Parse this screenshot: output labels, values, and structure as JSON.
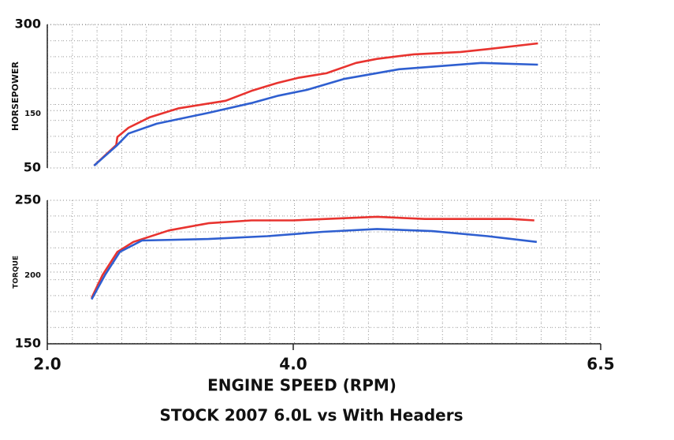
{
  "chart_data": [
    {
      "type": "line",
      "ylabel": "HORSEPOWER",
      "xlim": [
        2.0,
        6.5
      ],
      "ylim": [
        50,
        300
      ],
      "yticks": [
        50,
        150,
        300
      ],
      "grid": true,
      "series": [
        {
          "color": "#e8332f",
          "x": [
            2.38,
            2.56,
            2.57,
            2.66,
            2.83,
            3.07,
            3.45,
            3.67,
            3.87,
            4.04,
            4.27,
            4.51,
            4.68,
            4.98,
            5.36,
            5.58,
            5.99
          ],
          "values": [
            54,
            90,
            104,
            120,
            138,
            154,
            167,
            185,
            198,
            207,
            215,
            233,
            240,
            248,
            252,
            257,
            267
          ]
        },
        {
          "color": "#2f5fd0",
          "x": [
            2.38,
            2.56,
            2.66,
            2.89,
            3.31,
            3.66,
            3.88,
            4.11,
            4.41,
            4.86,
            5.53,
            5.99
          ],
          "values": [
            54,
            88,
            110,
            127,
            146,
            163,
            176,
            186,
            205,
            222,
            233,
            230
          ]
        }
      ]
    },
    {
      "type": "line",
      "ylabel": "TORQUE",
      "xlabel": "ENGINE SPEED (RPM)",
      "title": "STOCK 2007 6.0L vs With Headers",
      "xlim": [
        2.0,
        6.5
      ],
      "xticks": [
        {
          "value": 2.0,
          "label": "2.0"
        },
        {
          "value": 4.0,
          "label": "4.0"
        },
        {
          "value": 6.5,
          "label": "6.5"
        }
      ],
      "ylim": [
        150,
        250
      ],
      "yticks": [
        150,
        200,
        250
      ],
      "grid": true,
      "series": [
        {
          "color": "#e8332f",
          "x": [
            2.36,
            2.45,
            2.57,
            2.7,
            2.99,
            3.31,
            3.66,
            4.0,
            4.68,
            5.07,
            5.77,
            5.96
          ],
          "values": [
            182,
            198,
            214,
            221,
            229,
            234,
            236,
            236,
            238.5,
            237,
            237,
            236
          ]
        },
        {
          "color": "#2f5fd0",
          "x": [
            2.36,
            2.47,
            2.59,
            2.77,
            3.31,
            3.79,
            4.24,
            4.68,
            5.13,
            5.58,
            5.98
          ],
          "values": [
            181,
            198,
            214,
            222,
            223,
            225,
            228,
            230,
            228.5,
            225,
            221
          ]
        }
      ]
    }
  ]
}
